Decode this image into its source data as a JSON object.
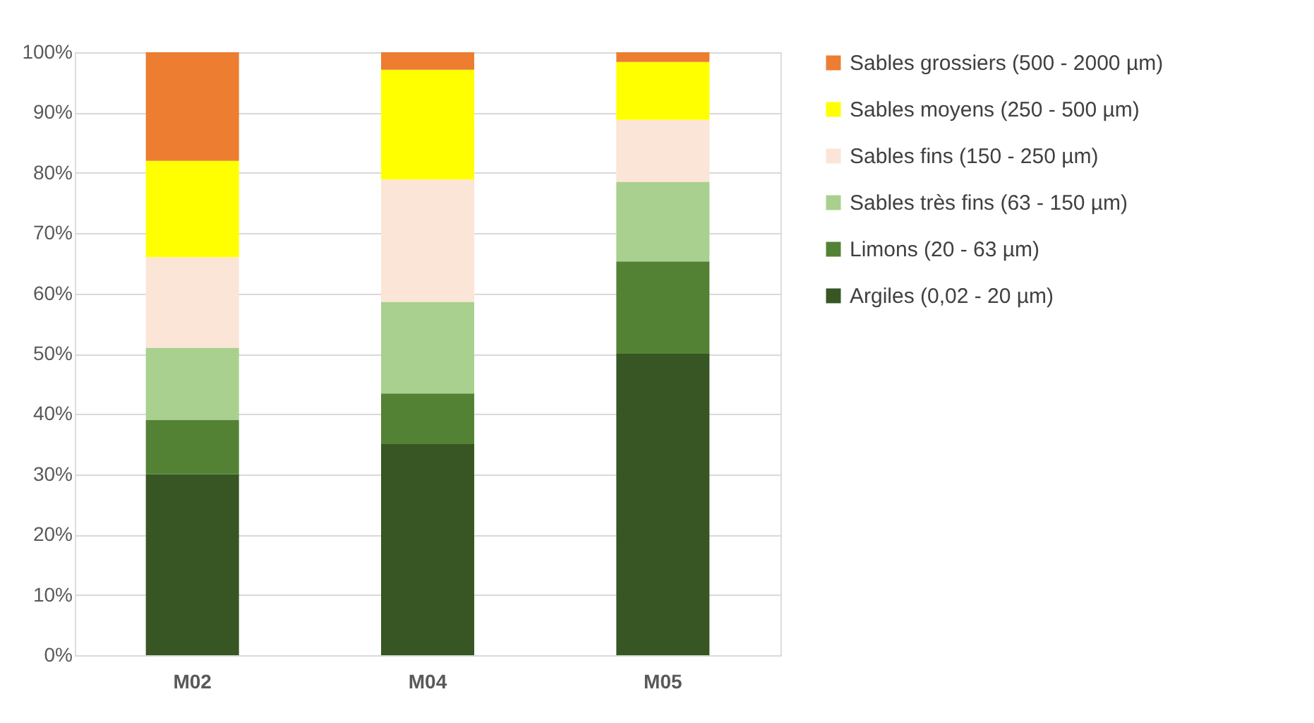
{
  "chart_data": {
    "type": "bar",
    "stacked": true,
    "categories": [
      "M02",
      "M04",
      "M05"
    ],
    "series": [
      {
        "name": "Argiles (0,02 - 20 µm)",
        "color": "#375623",
        "values": [
          30,
          35,
          50
        ]
      },
      {
        "name": "Limons (20 - 63 µm)",
        "color": "#548235",
        "values": [
          9,
          8.4,
          15.3
        ]
      },
      {
        "name": "Sables très fins (63 - 150 µm)",
        "color": "#a9d08e",
        "values": [
          12,
          15.2,
          13.2
        ]
      },
      {
        "name": "Sables fins (150 - 250 µm)",
        "color": "#fbe5d6",
        "values": [
          15,
          20.3,
          10.3
        ]
      },
      {
        "name": "Sables moyens (250 - 500 µm)",
        "color": "#ffff00",
        "values": [
          16,
          18.2,
          9.6
        ]
      },
      {
        "name": "Sables grossiers (500 - 2000 µm)",
        "color": "#ed7d31",
        "values": [
          18,
          2.9,
          1.6
        ]
      }
    ],
    "ylim": [
      0,
      100
    ],
    "yticks": [
      {
        "value": 0,
        "label": "0%"
      },
      {
        "value": 10,
        "label": "10%"
      },
      {
        "value": 20,
        "label": "20%"
      },
      {
        "value": 30,
        "label": "30%"
      },
      {
        "value": 40,
        "label": "40%"
      },
      {
        "value": 50,
        "label": "50%"
      },
      {
        "value": 60,
        "label": "60%"
      },
      {
        "value": 70,
        "label": "70%"
      },
      {
        "value": 80,
        "label": "80%"
      },
      {
        "value": 90,
        "label": "90%"
      },
      {
        "value": 100,
        "label": "100%"
      }
    ],
    "grid": "y",
    "legend": "right"
  }
}
